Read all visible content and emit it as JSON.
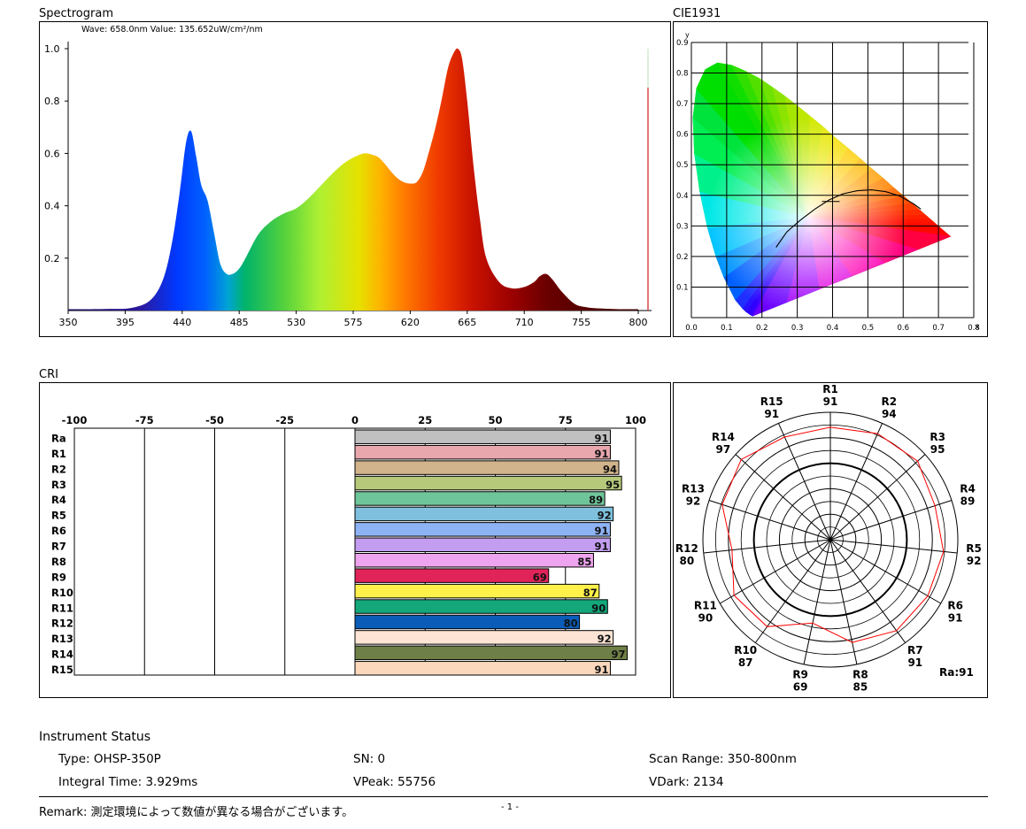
{
  "spectrogram": {
    "title": "Spectrogram",
    "readout": "Wave: 658.0nm  Value: 135.652uW/cm²/nm",
    "y_ticks": [
      "1.0",
      "0.8",
      "0.6",
      "0.4",
      "0.2"
    ],
    "x_ticks": [
      "350",
      "395",
      "440",
      "485",
      "530",
      "575",
      "620",
      "665",
      "710",
      "755",
      "800"
    ]
  },
  "cie": {
    "title": "CIE1931",
    "y_axis_label": "y",
    "x_axis_label": "x",
    "y_ticks": [
      "0.9",
      "0.8",
      "0.7",
      "0.6",
      "0.5",
      "0.4",
      "0.3",
      "0.2",
      "0.1"
    ],
    "x_ticks": [
      "0.0",
      "0.1",
      "0.2",
      "0.3",
      "0.4",
      "0.5",
      "0.6",
      "0.7",
      "0.8"
    ]
  },
  "cri": {
    "title": "CRI",
    "axis_ticks": [
      "-100",
      "-75",
      "-50",
      "-25",
      "0",
      "25",
      "50",
      "75",
      "100"
    ],
    "items": [
      {
        "label": "Ra",
        "value": 91,
        "color": "#c0c0c0"
      },
      {
        "label": "R1",
        "value": 91,
        "color": "#e8a6ad"
      },
      {
        "label": "R2",
        "value": 94,
        "color": "#d2b48c"
      },
      {
        "label": "R3",
        "value": 95,
        "color": "#b6c97a"
      },
      {
        "label": "R4",
        "value": 89,
        "color": "#6fc59a"
      },
      {
        "label": "R5",
        "value": 92,
        "color": "#7ec0dd"
      },
      {
        "label": "R6",
        "value": 91,
        "color": "#8db3f5"
      },
      {
        "label": "R7",
        "value": 91,
        "color": "#c39df0"
      },
      {
        "label": "R8",
        "value": 85,
        "color": "#eea4ee"
      },
      {
        "label": "R9",
        "value": 69,
        "color": "#e0245a"
      },
      {
        "label": "R10",
        "value": 87,
        "color": "#fff04a"
      },
      {
        "label": "R11",
        "value": 90,
        "color": "#13a77a"
      },
      {
        "label": "R12",
        "value": 80,
        "color": "#0a5cb8"
      },
      {
        "label": "R13",
        "value": 92,
        "color": "#fde4d4"
      },
      {
        "label": "R14",
        "value": 97,
        "color": "#6e7f47"
      },
      {
        "label": "R15",
        "value": 91,
        "color": "#fbd8bc"
      }
    ],
    "ra_text": "Ra:91"
  },
  "status": {
    "title": "Instrument Status",
    "type_label": "Type: OHSP-350P",
    "sn_label": "SN: 0",
    "scan_range_label": "Scan Range: 350-800nm",
    "integral_time_label": "Integral Time: 3.929ms",
    "vpeak_label": "VPeak: 55756",
    "vdark_label": "VDark: 2134",
    "remark": "Remark: 測定環境によって数値が異なる場合がございます。",
    "page_number": "- 1 -"
  },
  "chart_data": [
    {
      "type": "area",
      "title": "Spectrogram",
      "xlabel": "",
      "ylabel": "",
      "xlim": [
        350,
        800
      ],
      "ylim": [
        0,
        1.0
      ],
      "x": [
        350,
        380,
        400,
        415,
        425,
        432,
        438,
        443,
        447,
        451,
        455,
        460,
        465,
        470,
        475,
        480,
        485,
        490,
        500,
        510,
        520,
        530,
        540,
        550,
        560,
        570,
        580,
        585,
        590,
        595,
        600,
        605,
        610,
        615,
        620,
        625,
        630,
        635,
        640,
        645,
        650,
        655,
        658,
        661,
        665,
        670,
        675,
        680,
        690,
        700,
        710,
        718,
        722,
        727,
        732,
        740,
        750,
        760,
        770,
        780,
        790,
        800
      ],
      "y": [
        0.005,
        0.006,
        0.01,
        0.04,
        0.12,
        0.26,
        0.45,
        0.64,
        0.685,
        0.59,
        0.48,
        0.42,
        0.3,
        0.18,
        0.14,
        0.14,
        0.16,
        0.2,
        0.29,
        0.34,
        0.37,
        0.39,
        0.43,
        0.48,
        0.53,
        0.57,
        0.595,
        0.6,
        0.595,
        0.585,
        0.56,
        0.53,
        0.505,
        0.49,
        0.485,
        0.49,
        0.53,
        0.61,
        0.7,
        0.81,
        0.93,
        0.99,
        0.998,
        0.96,
        0.8,
        0.55,
        0.35,
        0.2,
        0.11,
        0.085,
        0.09,
        0.11,
        0.13,
        0.14,
        0.12,
        0.07,
        0.025,
        0.012,
        0.008,
        0.006,
        0.005,
        0.005
      ]
    },
    {
      "type": "bar",
      "title": "CRI",
      "categories": [
        "Ra",
        "R1",
        "R2",
        "R3",
        "R4",
        "R5",
        "R6",
        "R7",
        "R8",
        "R9",
        "R10",
        "R11",
        "R12",
        "R13",
        "R14",
        "R15"
      ],
      "values": [
        91,
        91,
        94,
        95,
        89,
        92,
        91,
        91,
        85,
        69,
        87,
        90,
        80,
        92,
        97,
        91
      ],
      "xlim": [
        -100,
        100
      ]
    }
  ]
}
